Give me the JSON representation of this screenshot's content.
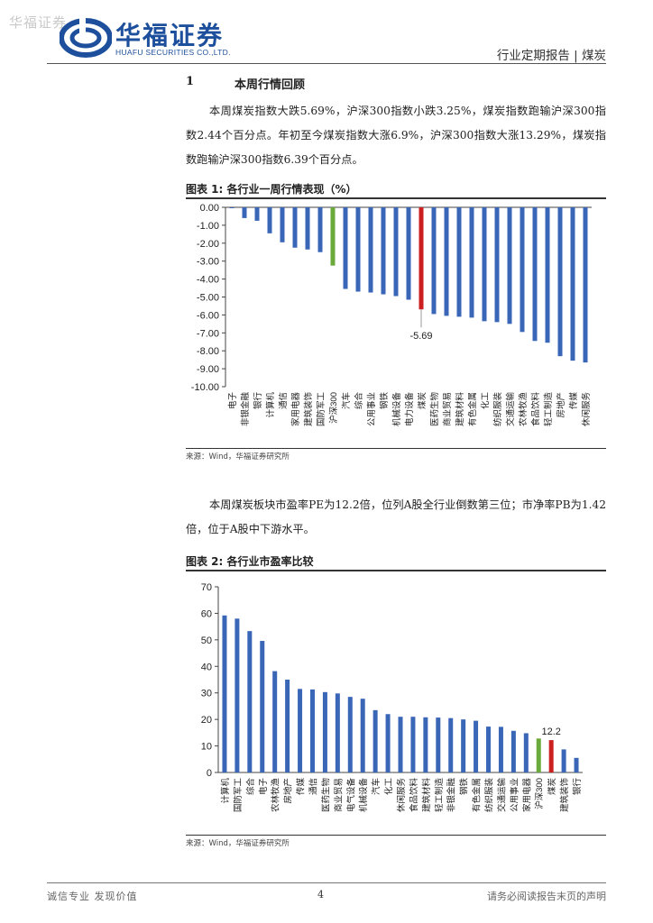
{
  "header": {
    "watermark": "华福证券",
    "logo_cn": "华福证券",
    "logo_en": "HUAFU SECURITIES CO.,LTD.",
    "report_type": "行业定期报告 | 煤炭"
  },
  "section": {
    "number": "1",
    "title": "本周行情回顾"
  },
  "paragraph1": "本周煤炭指数大跌5.69%，沪深300指数小跌3.25%，煤炭指数跑输沪深300指数2.44个百分点。年初至今煤炭指数大涨6.9%，沪深300指数大涨13.29%，煤炭指数跑输沪深300指数6.39个百分点。",
  "figure1": {
    "title": "图表 1:  各行业一周行情表现（%）",
    "source": "来源：Wind，华福证券研究所"
  },
  "paragraph2": "本周煤炭板块市盈率PE为12.2倍，位列A股全行业倒数第三位；市净率PB为1.42倍，位于A股中下游水平。",
  "figure2": {
    "title": "图表 2:  各行业市盈率比较",
    "source": "来源：Wind，华福证券研究所"
  },
  "chart_data": [
    {
      "type": "bar",
      "categories": [
        "电子",
        "非银金融",
        "银行",
        "计算机",
        "通信",
        "家用电器",
        "建筑装饰",
        "国防军工",
        "沪深300",
        "汽车",
        "综合",
        "公用事业",
        "钢铁",
        "机械设备",
        "电力设备",
        "煤炭",
        "医药生物",
        "商业贸易",
        "建筑材料",
        "有色金属",
        "化工",
        "纺织服装",
        "交通运输",
        "农林牧渔",
        "食品饮料",
        "轻工制造",
        "房地产",
        "传媒",
        "休闲服务"
      ],
      "values": [
        -0.05,
        -0.6,
        -0.75,
        -1.45,
        -1.95,
        -2.25,
        -2.35,
        -2.5,
        -3.25,
        -4.55,
        -4.7,
        -4.75,
        -4.85,
        -4.95,
        -5.15,
        -5.69,
        -5.95,
        -6.05,
        -6.1,
        -6.15,
        -6.35,
        -6.4,
        -6.5,
        -6.95,
        -7.45,
        -7.55,
        -8.3,
        -8.55,
        -8.65
      ],
      "ylim": [
        -10,
        0
      ],
      "yticks": [
        "0.00",
        "-1.00",
        "-2.00",
        "-3.00",
        "-4.00",
        "-5.00",
        "-6.00",
        "-7.00",
        "-8.00",
        "-9.00",
        "-10.00"
      ],
      "highlight": {
        "沪深300": "#6aaa3a",
        "煤炭": "#cc1f1f"
      },
      "bar_color": "#3a66b8",
      "annotation": {
        "category": "煤炭",
        "text": "-5.69"
      }
    },
    {
      "type": "bar",
      "categories": [
        "计算机",
        "国防军工",
        "综合",
        "电子",
        "农林牧渔",
        "房地产",
        "传媒",
        "通信",
        "医药生物",
        "商业贸易",
        "电气设备",
        "机械设备",
        "汽车",
        "化工",
        "休闲服务",
        "食品饮料",
        "建筑材料",
        "轻工制造",
        "非银金融",
        "钢铁",
        "有色金属",
        "纺织服装",
        "交通运输",
        "公用事业",
        "家用电器",
        "沪深300",
        "煤炭",
        "建筑装饰",
        "银行"
      ],
      "values": [
        59.2,
        58,
        53.3,
        49.6,
        38.2,
        35,
        31.5,
        31.3,
        30.3,
        29.8,
        28.5,
        27.8,
        23.5,
        22,
        21,
        21,
        20.8,
        20.7,
        20.5,
        20,
        19.5,
        17.3,
        17.2,
        15.7,
        14.8,
        12.8,
        12.2,
        8.7,
        5.5
      ],
      "ylim": [
        0,
        70
      ],
      "yticks": [
        "0",
        "10",
        "20",
        "30",
        "40",
        "50",
        "60",
        "70"
      ],
      "highlight": {
        "沪深300": "#6aaa3a",
        "煤炭": "#cc1f1f"
      },
      "bar_color": "#3a66b8",
      "annotation": {
        "category": "煤炭",
        "text": "12.2"
      }
    }
  ],
  "footer": {
    "left": "诚信专业  发现价值",
    "page": "4",
    "right": "请务必阅读报告末页的声明"
  }
}
